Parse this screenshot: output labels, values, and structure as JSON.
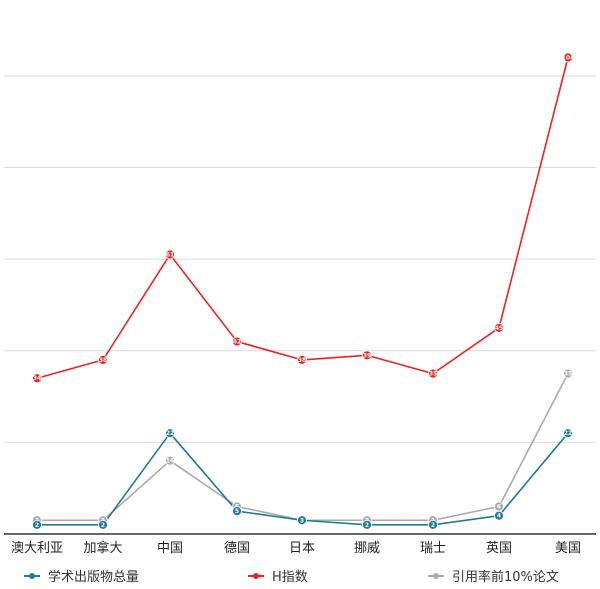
{
  "chart_data": {
    "type": "line",
    "categories": [
      "澳大利亚",
      "加拿大",
      "中国",
      "德国",
      "日本",
      "挪威",
      "瑞士",
      "英国",
      "美国"
    ],
    "series": [
      {
        "name": "学术出版物总量",
        "color": "#1f7a99",
        "values": [
          2,
          2,
          22,
          5,
          3,
          2,
          2,
          4,
          22
        ],
        "labels": [
          "2",
          "2",
          "22",
          "5",
          "3",
          "2",
          "2",
          "4",
          "22"
        ]
      },
      {
        "name": "H指数",
        "color": "#ee2222",
        "values": [
          34,
          38,
          61,
          42,
          38,
          39,
          35,
          45,
          104
        ],
        "labels": [
          "34",
          "38",
          "61",
          "42",
          "38",
          "39",
          "35",
          "45",
          "104"
        ]
      },
      {
        "name": "引用率前10%论文",
        "color": "#aaaaaa",
        "values": [
          3,
          3,
          16,
          6,
          3,
          3,
          3,
          6,
          35
        ],
        "labels": [
          "3",
          "3",
          "16",
          "6",
          "3",
          "3",
          "3",
          "6",
          "35"
        ]
      }
    ],
    "ylim": [
      0,
      110
    ],
    "grid": true,
    "legend_position": "bottom"
  }
}
